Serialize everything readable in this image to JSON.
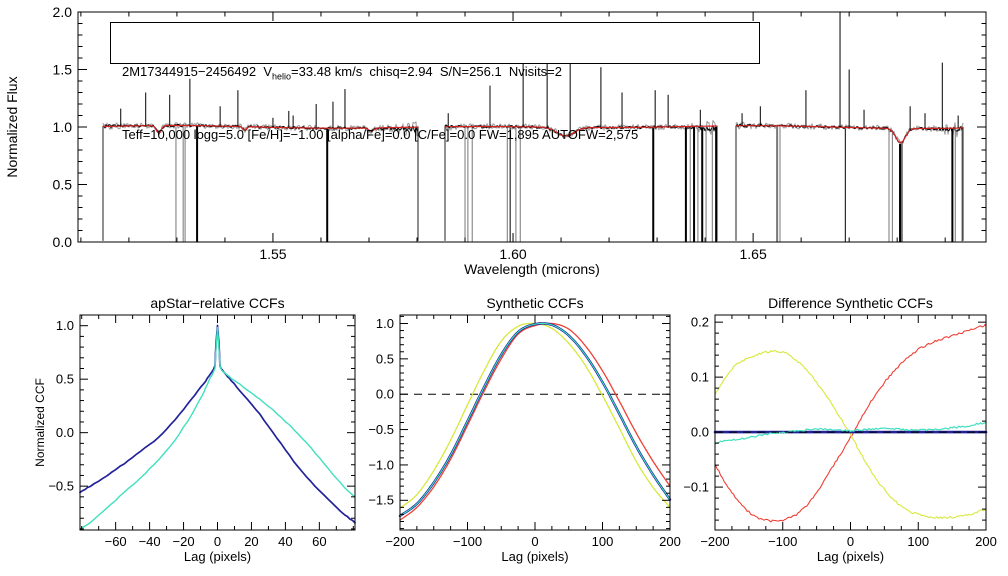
{
  "figure": {
    "background": "#ffffff",
    "annotation": {
      "line1_prefix": "2M17344915−2456492  V",
      "line1_sub": "helio",
      "line1_suffix": "=33.48 km/s  chisq=2.94  S/N=256.1  Nvisits=2",
      "line2": "Teff=10,000 logg=5.0 [Fe/H]=−1.00 [alpha/Fe]=0.0 [C/Fe]=0.0 FW=1,895 AUTOFW=2,575"
    }
  },
  "chart_data": [
    {
      "id": "spectrum",
      "type": "line",
      "title": "",
      "xlabel": "Wavelength (microns)",
      "ylabel": "Normalized Flux",
      "xlim": [
        1.5094,
        1.6985
      ],
      "ylim": [
        0,
        2
      ],
      "xticks": {
        "values": [
          1.55,
          1.6,
          1.65
        ],
        "labels": [
          "1.55",
          "1.60",
          "1.65"
        ]
      },
      "minor_x": 0.01,
      "yticks": {
        "values": [
          0,
          0.5,
          1,
          1.5,
          2
        ],
        "labels": [
          "0.0",
          "0.5",
          "1.0",
          "1.5",
          "2.0"
        ]
      },
      "minor_y": 0.1,
      "colors": {
        "observed": "#000000",
        "noise": "#9a9a9a",
        "model": "#d62321"
      },
      "chunks_microns": [
        [
          1.5146,
          1.5802
        ],
        [
          1.5858,
          1.6425
        ],
        [
          1.6465,
          1.6938
        ]
      ],
      "absorption_lines": [
        {
          "center": 1.5262,
          "depth": 0.065,
          "sigma": 0.0005
        },
        {
          "center": 1.5441,
          "depth": 0.03,
          "sigma": 0.0004
        },
        {
          "center": 1.5705,
          "depth": 0.025,
          "sigma": 0.0006
        },
        {
          "center": 1.6109,
          "depth": 0.075,
          "sigma": 0.0018
        },
        {
          "center": 1.6807,
          "depth": 0.125,
          "sigma": 0.001
        }
      ],
      "emission_spikes": [
        [
          1.5183,
          1.16
        ],
        [
          1.5235,
          1.3
        ],
        [
          1.5285,
          1.28
        ],
        [
          1.5327,
          1.42
        ],
        [
          1.539,
          1.18
        ],
        [
          1.5427,
          1.32
        ],
        [
          1.55,
          1.08
        ],
        [
          1.5533,
          1.14
        ],
        [
          1.5542,
          1.1
        ],
        [
          1.559,
          1.2
        ],
        [
          1.5625,
          1.22
        ],
        [
          1.565,
          1.33
        ],
        [
          1.5865,
          1.12
        ],
        [
          1.5952,
          1.36
        ],
        [
          1.6021,
          1.85
        ],
        [
          1.6071,
          1.78
        ],
        [
          1.6119,
          1.85
        ],
        [
          1.6183,
          1.52
        ],
        [
          1.6227,
          1.3
        ],
        [
          1.6296,
          1.32
        ],
        [
          1.6323,
          1.28
        ],
        [
          1.639,
          1.15
        ],
        [
          1.6477,
          1.12
        ],
        [
          1.6515,
          1.18
        ],
        [
          1.661,
          1.32
        ],
        [
          1.6681,
          2.05
        ],
        [
          1.67,
          1.5
        ],
        [
          1.6731,
          1.15
        ],
        [
          1.6827,
          1.18
        ],
        [
          1.6858,
          1.12
        ],
        [
          1.6894,
          1.56
        ],
        [
          1.6927,
          1.1
        ]
      ],
      "dead_pixel_lines": [
        [
          1.5298,
          1,
          "g"
        ],
        [
          1.5313,
          1,
          "g"
        ],
        [
          1.5317,
          1,
          "g"
        ],
        [
          1.5342,
          2,
          "k"
        ],
        [
          1.5613,
          2,
          "k"
        ],
        [
          1.59,
          1,
          "g"
        ],
        [
          1.5906,
          1,
          "g"
        ],
        [
          1.5915,
          1,
          "g"
        ],
        [
          1.5988,
          1,
          "g"
        ],
        [
          1.5994,
          1,
          "k"
        ],
        [
          1.6006,
          1,
          "g"
        ],
        [
          1.6015,
          1,
          "g"
        ],
        [
          1.6292,
          2,
          "k"
        ],
        [
          1.636,
          2,
          "k"
        ],
        [
          1.6369,
          1,
          "g"
        ],
        [
          1.6377,
          2,
          "k"
        ],
        [
          1.6385,
          1,
          "g"
        ],
        [
          1.6394,
          2,
          "k"
        ],
        [
          1.6402,
          1,
          "g"
        ],
        [
          1.6415,
          1,
          "g"
        ],
        [
          1.6423,
          2,
          "k"
        ],
        [
          1.655,
          2,
          "g"
        ],
        [
          1.6556,
          1,
          "g"
        ],
        [
          1.6692,
          1,
          "k"
        ],
        [
          1.6783,
          1,
          "g"
        ],
        [
          1.679,
          1,
          "g"
        ],
        [
          1.6806,
          2,
          "k"
        ],
        [
          1.681,
          1,
          "k"
        ],
        [
          1.6915,
          2,
          "k"
        ],
        [
          1.6921,
          1,
          "g"
        ],
        [
          1.6935,
          1,
          "g"
        ]
      ]
    },
    {
      "id": "apstar_ccf",
      "type": "line",
      "title": "apStar−relative CCFs",
      "xlabel": "Lag (pixels)",
      "ylabel": "Normalized CCF",
      "xlim": [
        -81,
        81
      ],
      "ylim": [
        -0.91,
        1.1
      ],
      "xticks": {
        "values": [
          -60,
          -40,
          -20,
          0,
          20,
          40,
          60
        ],
        "labels": [
          "−60",
          "−40",
          "−20",
          "0",
          "20",
          "40",
          "60"
        ]
      },
      "minor_x": 10,
      "yticks": {
        "values": [
          -0.5,
          0,
          0.5,
          1
        ],
        "labels": [
          "−0.5",
          "0.0",
          "0.5",
          "1.0"
        ]
      },
      "minor_y": 0.1,
      "series": [
        {
          "name": "ccf-navy",
          "color": "#22229b",
          "width": 1.7,
          "jitter": 0.008,
          "points": [
            [
              -81,
              -0.56
            ],
            [
              -75,
              -0.5
            ],
            [
              -65,
              -0.4
            ],
            [
              -55,
              -0.29
            ],
            [
              -45,
              -0.17
            ],
            [
              -35,
              -0.05
            ],
            [
              -25,
              0.12
            ],
            [
              -15,
              0.32
            ],
            [
              -8,
              0.46
            ],
            [
              -4,
              0.55
            ],
            [
              -2.5,
              0.59
            ],
            [
              -1.5,
              0.62
            ],
            [
              -0.8,
              0.85
            ],
            [
              0,
              1.0
            ],
            [
              0.8,
              0.85
            ],
            [
              1.5,
              0.62
            ],
            [
              2.5,
              0.59
            ],
            [
              4,
              0.56
            ],
            [
              8,
              0.49
            ],
            [
              15,
              0.36
            ],
            [
              25,
              0.17
            ],
            [
              35,
              -0.05
            ],
            [
              45,
              -0.27
            ],
            [
              55,
              -0.46
            ],
            [
              65,
              -0.62
            ],
            [
              75,
              -0.77
            ],
            [
              81,
              -0.84
            ]
          ]
        },
        {
          "name": "ccf-cyan",
          "color": "#3fe0be",
          "width": 1.4,
          "jitter": 0.008,
          "points": [
            [
              -81,
              -0.9
            ],
            [
              -75,
              -0.84
            ],
            [
              -65,
              -0.7
            ],
            [
              -55,
              -0.56
            ],
            [
              -45,
              -0.42
            ],
            [
              -35,
              -0.26
            ],
            [
              -25,
              -0.07
            ],
            [
              -15,
              0.17
            ],
            [
              -8,
              0.38
            ],
            [
              -4,
              0.52
            ],
            [
              -2.5,
              0.56
            ],
            [
              -1.5,
              0.6
            ],
            [
              -0.8,
              0.8
            ],
            [
              0,
              0.98
            ],
            [
              0.8,
              0.8
            ],
            [
              1.5,
              0.62
            ],
            [
              2.5,
              0.58
            ],
            [
              4,
              0.56
            ],
            [
              8,
              0.51
            ],
            [
              15,
              0.43
            ],
            [
              25,
              0.31
            ],
            [
              35,
              0.18
            ],
            [
              45,
              0.03
            ],
            [
              55,
              -0.14
            ],
            [
              65,
              -0.33
            ],
            [
              75,
              -0.52
            ],
            [
              81,
              -0.6
            ]
          ]
        }
      ]
    },
    {
      "id": "synthetic_ccf",
      "type": "line",
      "title": "Synthetic CCFs",
      "xlabel": "Lag (pixels)",
      "ylabel": "",
      "xlim": [
        -200,
        200
      ],
      "ylim": [
        -1.92,
        1.12
      ],
      "xticks": {
        "values": [
          -200,
          -100,
          0,
          100,
          200
        ],
        "labels": [
          "−200",
          "−100",
          "0",
          "100",
          "200"
        ]
      },
      "minor_x": 25,
      "yticks": {
        "values": [
          -1.5,
          -1,
          -0.5,
          0,
          0.5,
          1
        ],
        "labels": [
          "−1.5",
          "−1.0",
          "−0.5",
          "0.0",
          "0.5",
          "1.0"
        ]
      },
      "minor_y": 0.1,
      "zero_line_dashed": true,
      "zero_line_position": "under",
      "lags": [
        -200,
        -175,
        -150,
        -125,
        -100,
        -75,
        -50,
        -25,
        0,
        25,
        50,
        75,
        100,
        125,
        150,
        175,
        200
      ],
      "series": [
        {
          "name": "synth-yellow",
          "color": "#d8e83c",
          "width": 1.3,
          "smooth": true,
          "values": [
            -1.61,
            -1.42,
            -1.08,
            -0.65,
            -0.15,
            0.34,
            0.75,
            0.96,
            1.0,
            0.93,
            0.72,
            0.4,
            -0.02,
            -0.48,
            -0.95,
            -1.32,
            -1.6
          ]
        },
        {
          "name": "synth-red",
          "color": "#ee4035",
          "width": 1.3,
          "smooth": true,
          "values": [
            -1.78,
            -1.6,
            -1.31,
            -0.92,
            -0.44,
            0.05,
            0.5,
            0.85,
            0.97,
            1.0,
            0.92,
            0.68,
            0.33,
            -0.1,
            -0.55,
            -0.95,
            -1.3
          ]
        },
        {
          "name": "synth-navy",
          "color": "#22229b",
          "width": 2.4,
          "smooth": true,
          "values": [
            -1.72,
            -1.55,
            -1.25,
            -0.86,
            -0.38,
            0.11,
            0.56,
            0.88,
            0.99,
            0.98,
            0.83,
            0.55,
            0.17,
            -0.28,
            -0.74,
            -1.14,
            -1.49
          ]
        },
        {
          "name": "synth-cyan",
          "color": "#3fe0be",
          "width": 1.1,
          "smooth": true,
          "values": [
            -1.72,
            -1.55,
            -1.25,
            -0.86,
            -0.38,
            0.11,
            0.56,
            0.88,
            0.99,
            0.98,
            0.83,
            0.55,
            0.17,
            -0.28,
            -0.74,
            -1.14,
            -1.49
          ]
        }
      ]
    },
    {
      "id": "diff_ccf",
      "type": "line",
      "title": "Difference Synthetic CCFs",
      "xlabel": "Lag (pixels)",
      "ylabel": "",
      "xlim": [
        -200,
        200
      ],
      "ylim": [
        -0.178,
        0.213
      ],
      "xticks": {
        "values": [
          -200,
          -100,
          0,
          100,
          200
        ],
        "labels": [
          "−200",
          "−100",
          "0",
          "100",
          "200"
        ]
      },
      "minor_x": 25,
      "yticks": {
        "values": [
          -0.1,
          0,
          0.1,
          0.2
        ],
        "labels": [
          "−0.1",
          "0.0",
          "0.1",
          "0.2"
        ]
      },
      "minor_y": 0.02,
      "zero_line_dashed": true,
      "zero_line_position": "over",
      "lags": [
        -200,
        -175,
        -150,
        -125,
        -100,
        -75,
        -50,
        -25,
        0,
        25,
        50,
        75,
        100,
        125,
        150,
        175,
        200
      ],
      "series": [
        {
          "name": "diff-red",
          "color": "#ee4035",
          "width": 1.1,
          "smooth": true,
          "jitter": 0.004,
          "values": [
            -0.06,
            -0.11,
            -0.145,
            -0.16,
            -0.16,
            -0.145,
            -0.11,
            -0.06,
            -0.01,
            0.045,
            0.09,
            0.125,
            0.15,
            0.165,
            0.175,
            0.185,
            0.195
          ]
        },
        {
          "name": "diff-yellow",
          "color": "#d8e83c",
          "width": 1.1,
          "smooth": true,
          "jitter": 0.004,
          "values": [
            0.07,
            0.115,
            0.135,
            0.145,
            0.145,
            0.125,
            0.09,
            0.045,
            -0.005,
            -0.06,
            -0.105,
            -0.135,
            -0.15,
            -0.155,
            -0.155,
            -0.15,
            -0.14
          ]
        },
        {
          "name": "diff-navy",
          "color": "#22229b",
          "width": 2.6,
          "smooth": false,
          "values": [
            0,
            0,
            0,
            0,
            0,
            0,
            0,
            0,
            0,
            0,
            0,
            0,
            0,
            0,
            0,
            0,
            0
          ]
        },
        {
          "name": "diff-cyan",
          "color": "#3fe0be",
          "width": 1.2,
          "smooth": true,
          "jitter": 0.0035,
          "values": [
            -0.02,
            -0.014,
            -0.01,
            -0.004,
            0.0,
            0.003,
            0.005,
            0.004,
            0.003,
            0.005,
            0.006,
            0.005,
            0.004,
            0.005,
            0.008,
            0.012,
            0.018
          ]
        }
      ]
    }
  ]
}
